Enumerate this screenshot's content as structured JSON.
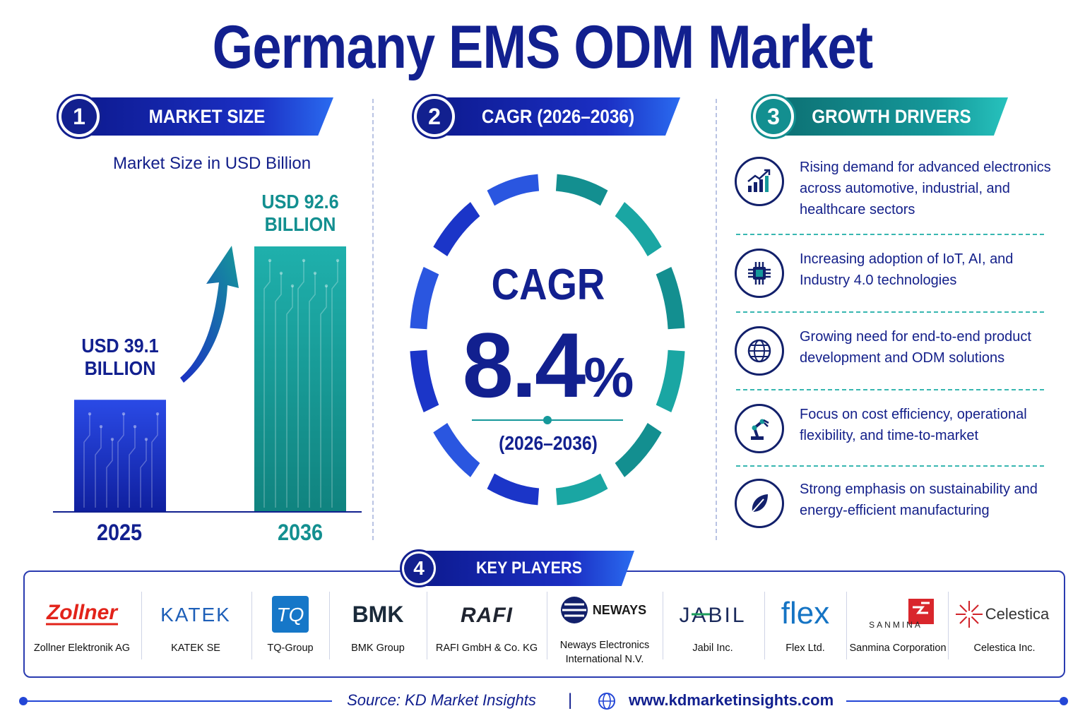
{
  "title": "Germany EMS ODM Market",
  "colors": {
    "navy": "#12208f",
    "blue": "#1b2fc4",
    "teal": "#15989a",
    "bright_blue": "#2a6bf0"
  },
  "sections": {
    "market_size": {
      "number": "1",
      "label": "MARKET SIZE",
      "subtitle": "Market Size in USD Billion"
    },
    "cagr": {
      "number": "2",
      "label": "CAGR (2026–2036)"
    },
    "growth_drivers": {
      "number": "3",
      "label": "GROWTH DRIVERS"
    },
    "key_players": {
      "number": "4",
      "label": "KEY PLAYERS"
    }
  },
  "chart_data": {
    "type": "bar",
    "categories": [
      "2025",
      "2036"
    ],
    "values": [
      39.1,
      92.6
    ],
    "labels": [
      "USD 39.1 BILLION",
      "USD 92.6 BILLION"
    ],
    "label_lines": [
      [
        "USD 39.1",
        "BILLION"
      ],
      [
        "USD 92.6",
        "BILLION"
      ]
    ],
    "colors": [
      "#1b2fc4",
      "#15989a"
    ],
    "ylabel": "Market Size in USD Billion",
    "ylim": [
      0,
      92.6
    ],
    "grid": false
  },
  "cagr": {
    "label": "CAGR",
    "value": "8.4",
    "unit": "%",
    "period": "(2026–2036)"
  },
  "drivers": [
    {
      "icon": "growth-chart-icon",
      "text": "Rising demand for advanced electronics across automotive, industrial, and healthcare sectors"
    },
    {
      "icon": "chip-icon",
      "text": "Increasing adoption of IoT, AI, and Industry 4.0 technologies"
    },
    {
      "icon": "globe-icon",
      "text": "Growing need for end-to-end product development and ODM solutions"
    },
    {
      "icon": "robot-arm-icon",
      "text": "Focus on cost efficiency, operational flexibility, and time-to-market"
    },
    {
      "icon": "leaf-icon",
      "text": "Strong emphasis on sustainability and energy-efficient manufacturing"
    }
  ],
  "players": [
    {
      "logo": "Zollner",
      "name": "Zollner Elektronik AG"
    },
    {
      "logo": "KATEK",
      "name": "KATEK SE"
    },
    {
      "logo": "TQ",
      "name": "TQ-Group"
    },
    {
      "logo": "BMK",
      "name": "BMK Group"
    },
    {
      "logo": "RAFI",
      "name": "RAFI GmbH & Co. KG"
    },
    {
      "logo": "NEWAYS",
      "name": "Neways Electronics International N.V."
    },
    {
      "logo": "JABIL",
      "name": "Jabil Inc."
    },
    {
      "logo": "flex",
      "name": "Flex Ltd."
    },
    {
      "logo": "SANMINA",
      "name": "Sanmina Corporation"
    },
    {
      "logo": "Celestica",
      "name": "Celestica Inc."
    }
  ],
  "footer": {
    "source": "Source: KD Market Insights",
    "separator": "|",
    "website": "www.kdmarketinsights.com"
  }
}
